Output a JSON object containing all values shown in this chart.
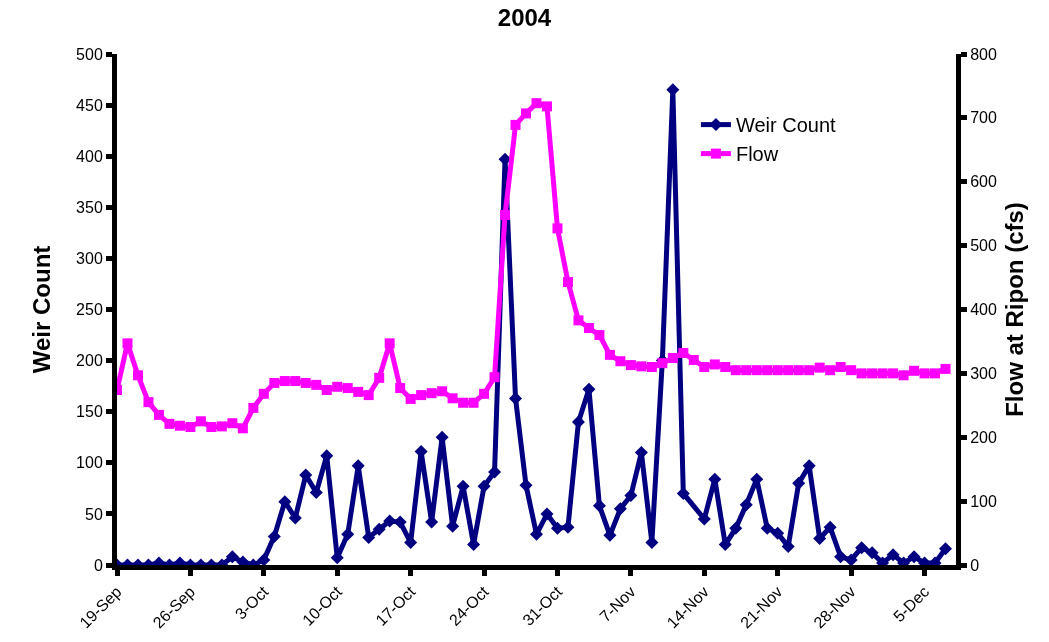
{
  "chart_data": {
    "type": "line",
    "title": "2004",
    "ylabel": "Weir Count",
    "y2label": "Flow at Ripon (cfs)",
    "x": [
      "2004-09-19",
      "2004-09-20",
      "2004-09-21",
      "2004-09-22",
      "2004-09-23",
      "2004-09-24",
      "2004-09-25",
      "2004-09-26",
      "2004-09-27",
      "2004-09-28",
      "2004-09-29",
      "2004-09-30",
      "2004-10-01",
      "2004-10-02",
      "2004-10-03",
      "2004-10-04",
      "2004-10-05",
      "2004-10-06",
      "2004-10-07",
      "2004-10-08",
      "2004-10-09",
      "2004-10-10",
      "2004-10-11",
      "2004-10-12",
      "2004-10-13",
      "2004-10-14",
      "2004-10-15",
      "2004-10-16",
      "2004-10-17",
      "2004-10-18",
      "2004-10-19",
      "2004-10-20",
      "2004-10-21",
      "2004-10-22",
      "2004-10-23",
      "2004-10-24",
      "2004-10-25",
      "2004-10-26",
      "2004-10-27",
      "2004-10-28",
      "2004-10-29",
      "2004-10-30",
      "2004-10-31",
      "2004-11-01",
      "2004-11-02",
      "2004-11-03",
      "2004-11-04",
      "2004-11-05",
      "2004-11-06",
      "2004-11-07",
      "2004-11-08",
      "2004-11-09",
      "2004-11-10",
      "2004-11-11",
      "2004-11-12",
      "2004-11-13",
      "2004-11-14",
      "2004-11-15",
      "2004-11-16",
      "2004-11-17",
      "2004-11-18",
      "2004-11-19",
      "2004-11-20",
      "2004-11-21",
      "2004-11-22",
      "2004-11-23",
      "2004-11-24",
      "2004-11-25",
      "2004-11-26",
      "2004-11-27",
      "2004-11-28",
      "2004-11-29",
      "2004-11-30",
      "2004-12-01",
      "2004-12-02",
      "2004-12-03",
      "2004-12-04",
      "2004-12-05",
      "2004-12-06",
      "2004-12-07"
    ],
    "series": [
      {
        "name": "Weir Count",
        "color": "#000080",
        "marker": "diamond",
        "x": [
          "2004-09-19",
          "2004-09-20",
          "2004-09-21",
          "2004-09-22",
          "2004-09-23",
          "2004-09-24",
          "2004-09-25",
          "2004-09-26",
          "2004-09-27",
          "2004-09-28",
          "2004-09-29",
          "2004-09-30",
          "2004-10-01",
          "2004-10-02",
          "2004-10-03",
          "2004-10-04",
          "2004-10-05",
          "2004-10-06",
          "2004-10-07",
          "2004-10-08",
          "2004-10-09",
          "2004-10-10",
          "2004-10-11",
          "2004-10-12",
          "2004-10-13",
          "2004-10-14",
          "2004-10-15",
          "2004-10-16",
          "2004-10-17",
          "2004-10-18",
          "2004-10-19",
          "2004-10-20",
          "2004-10-21",
          "2004-10-22",
          "2004-10-23",
          "2004-10-24",
          "2004-10-25",
          "2004-10-26",
          "2004-10-27",
          "2004-10-28",
          "2004-10-29",
          "2004-10-30",
          "2004-10-31",
          "2004-11-01",
          "2004-11-02",
          "2004-11-03",
          "2004-11-04",
          "2004-11-05",
          "2004-11-06",
          "2004-11-07",
          "2004-11-08",
          "2004-11-09",
          "2004-11-10",
          "2004-11-11",
          "2004-11-12",
          "2004-11-14",
          "2004-11-15",
          "2004-11-16",
          "2004-11-17",
          "2004-11-18",
          "2004-11-19",
          "2004-11-20",
          "2004-11-21",
          "2004-11-22",
          "2004-11-23",
          "2004-11-24",
          "2004-11-25",
          "2004-11-26",
          "2004-11-27",
          "2004-11-28",
          "2004-11-29",
          "2004-11-30",
          "2004-12-01",
          "2004-12-02",
          "2004-12-03",
          "2004-12-04",
          "2004-12-05",
          "2004-12-06",
          "2004-12-07"
        ],
        "values": [
          0,
          0,
          0,
          0,
          2,
          0,
          2,
          0,
          0,
          0,
          0,
          8,
          3,
          0,
          5,
          28,
          62,
          46,
          88,
          71,
          107,
          7,
          30,
          97,
          27,
          35,
          43,
          42,
          22,
          111,
          42,
          125,
          38,
          77,
          20,
          77,
          91,
          397,
          163,
          78,
          30,
          50,
          36,
          37,
          140,
          172,
          58,
          29,
          55,
          68,
          110,
          22,
          200,
          465,
          70,
          45,
          84,
          20,
          36,
          59,
          84,
          36,
          31,
          18,
          80,
          97,
          26,
          37,
          8,
          5,
          17,
          12,
          2,
          10,
          2,
          8,
          2,
          2,
          16
        ]
      },
      {
        "name": "Flow",
        "color": "#ff00ff",
        "marker": "square",
        "axis": "y2",
        "values": [
          274,
          347,
          297,
          255,
          235,
          221,
          218,
          216,
          225,
          216,
          217,
          222,
          214,
          246,
          268,
          285,
          288,
          288,
          285,
          282,
          274,
          279,
          277,
          271,
          266,
          293,
          347,
          277,
          260,
          266,
          269,
          272,
          261,
          254,
          254,
          268,
          294,
          548,
          689,
          707,
          723,
          718,
          527,
          443,
          383,
          371,
          360,
          329,
          319,
          313,
          311,
          310,
          316,
          324,
          332,
          321,
          310,
          314,
          310,
          305,
          305,
          305,
          305,
          305,
          305,
          305,
          305,
          309,
          305,
          310,
          305,
          300,
          300,
          300,
          300,
          297,
          304,
          300,
          300,
          307
        ]
      }
    ],
    "xlim": [
      "2004-09-19",
      "2004-12-08"
    ],
    "xticks": [
      {
        "value": "2004-09-19",
        "label": "19-Sep"
      },
      {
        "value": "2004-09-26",
        "label": "26-Sep"
      },
      {
        "value": "2004-10-03",
        "label": "3-Oct"
      },
      {
        "value": "2004-10-10",
        "label": "10-Oct"
      },
      {
        "value": "2004-10-17",
        "label": "17-Oct"
      },
      {
        "value": "2004-10-24",
        "label": "24-Oct"
      },
      {
        "value": "2004-10-31",
        "label": "31-Oct"
      },
      {
        "value": "2004-11-07",
        "label": "7-Nov"
      },
      {
        "value": "2004-11-14",
        "label": "14-Nov"
      },
      {
        "value": "2004-11-21",
        "label": "21-Nov"
      },
      {
        "value": "2004-11-28",
        "label": "28-Nov"
      },
      {
        "value": "2004-12-05",
        "label": "5-Dec"
      }
    ],
    "ylim": [
      0,
      500
    ],
    "yticks": [
      0,
      50,
      100,
      150,
      200,
      250,
      300,
      350,
      400,
      450,
      500
    ],
    "y2lim": [
      0,
      800
    ],
    "y2ticks": [
      0,
      100,
      200,
      300,
      400,
      500,
      600,
      700,
      800
    ],
    "grid": false,
    "legend": "top right",
    "line_style": "solid"
  }
}
